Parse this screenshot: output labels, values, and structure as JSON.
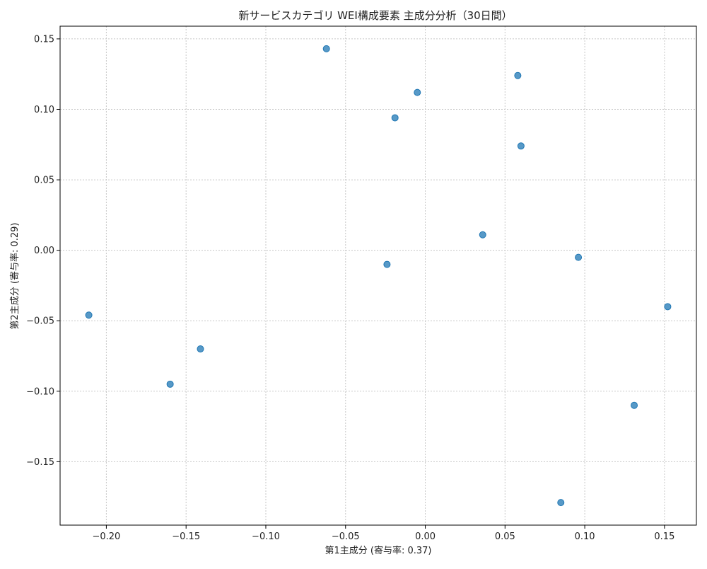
{
  "chart_data": {
    "type": "scatter",
    "title": "新サービスカテゴリ WEI構成要素 主成分分析（30日間）",
    "xlabel": "第1主成分 (寄与率: 0.37)",
    "ylabel": "第2主成分 (寄与率: 0.29)",
    "xlim": [
      -0.229,
      0.17
    ],
    "ylim": [
      -0.195,
      0.159
    ],
    "xticks": [
      -0.2,
      -0.15,
      -0.1,
      -0.05,
      0.0,
      0.05,
      0.1,
      0.15
    ],
    "xtick_labels": [
      "−0.20",
      "−0.15",
      "−0.10",
      "−0.05",
      "0.00",
      "0.05",
      "0.10",
      "0.15"
    ],
    "yticks": [
      0.15,
      0.1,
      0.05,
      0.0,
      -0.05,
      -0.1,
      -0.15
    ],
    "ytick_labels": [
      "0.15",
      "0.10",
      "0.05",
      "0.00",
      "−0.05",
      "−0.10",
      "−0.15"
    ],
    "grid": true,
    "grid_style": "dotted",
    "marker_color": "#1f77b4",
    "points": [
      {
        "x": -0.062,
        "y": 0.143
      },
      {
        "x": 0.058,
        "y": 0.124
      },
      {
        "x": -0.005,
        "y": 0.112
      },
      {
        "x": -0.019,
        "y": 0.094
      },
      {
        "x": 0.06,
        "y": 0.074
      },
      {
        "x": 0.036,
        "y": 0.011
      },
      {
        "x": -0.024,
        "y": -0.01
      },
      {
        "x": 0.096,
        "y": -0.005
      },
      {
        "x": 0.152,
        "y": -0.04
      },
      {
        "x": -0.211,
        "y": -0.046
      },
      {
        "x": -0.141,
        "y": -0.07
      },
      {
        "x": -0.16,
        "y": -0.095
      },
      {
        "x": 0.131,
        "y": -0.11
      },
      {
        "x": 0.085,
        "y": -0.179
      }
    ]
  }
}
